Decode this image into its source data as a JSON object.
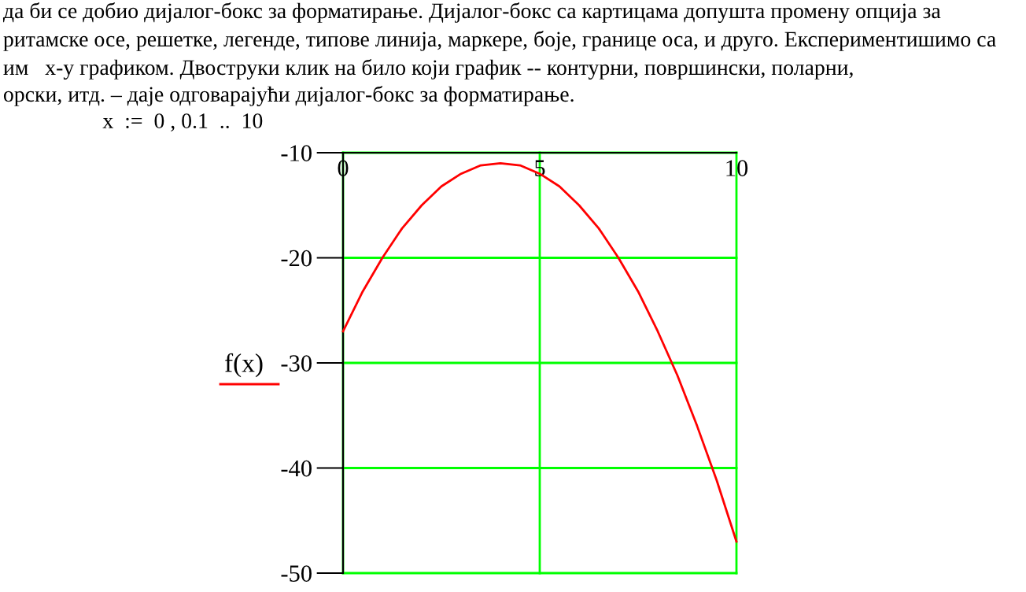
{
  "chart_data": {
    "type": "line",
    "x": [
      0,
      0.5,
      1,
      1.5,
      2,
      2.5,
      3,
      3.5,
      4,
      4.5,
      5,
      5.5,
      6,
      6.5,
      7,
      7.5,
      8,
      8.5,
      9,
      9.5,
      10
    ],
    "series": [
      {
        "name": "f(x)",
        "color": "#ff0000",
        "values": [
          -27,
          -23.2,
          -20,
          -17.2,
          -15,
          -13.2,
          -12,
          -11.2,
          -11,
          -11.2,
          -12,
          -13.2,
          -15,
          -17.2,
          -20,
          -23.2,
          -27,
          -31.2,
          -36,
          -41.2,
          -47
        ]
      }
    ],
    "xlim": [
      0,
      10
    ],
    "ylim": [
      -50,
      -10
    ],
    "xticks": [
      0,
      5,
      10
    ],
    "yticks": [
      -10,
      -20,
      -30,
      -40,
      -50
    ],
    "grid": true,
    "legend": "left",
    "marker": "none",
    "line_style": "solid",
    "annotations": [
      "да би се добио дијалог-бокс за форматирање. Дијалог-бокс са картицама допушта промену опција за",
      "ритамске осе, решетке, легенде, типове линија, маркере, боје, границе оса, и друго. Експериментишимо са",
      "им   x-y графиком. Двоструки клик на било који график -- контурни, површински, поларни,",
      "орски, итд. – даје одговарајући дијалог-бокс за форматирање.",
      "x  :=  0 , 0.1  ..  10"
    ]
  }
}
